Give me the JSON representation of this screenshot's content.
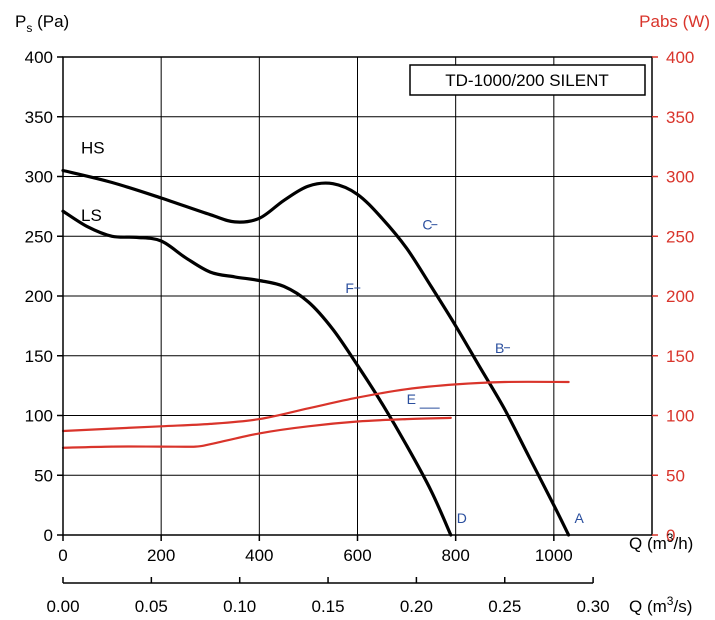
{
  "chart_data": {
    "type": "line",
    "title": "TD-1000/200 SILENT",
    "ylabel_left": {
      "main": "P",
      "sub": "s",
      "rest": " (Pa)"
    },
    "ylabel_right": "Pabs (W)",
    "xlabel_top": {
      "pre": "Q (m",
      "sup": "3",
      "post": "/h)"
    },
    "xlabel_bottom": {
      "pre": "Q (m",
      "sup": "3",
      "post": "/s)"
    },
    "xlim": [
      0,
      1200
    ],
    "ylim": [
      0,
      400
    ],
    "y2lim": [
      0,
      400
    ],
    "x_ticks": [
      0,
      200,
      400,
      600,
      800,
      1000
    ],
    "x_tick_labels": [
      "0",
      "200",
      "400",
      "600",
      "800",
      "1000"
    ],
    "x2_ticks": [
      0.0,
      0.05,
      0.1,
      0.15,
      0.2,
      0.25,
      0.3
    ],
    "x2_tick_labels": [
      "0.00",
      "0.05",
      "0.10",
      "0.15",
      "0.20",
      "0.25",
      "0.30"
    ],
    "y_ticks": [
      0,
      50,
      100,
      150,
      200,
      250,
      300,
      350,
      400
    ],
    "y_tick_labels": [
      "0",
      "50",
      "100",
      "150",
      "200",
      "250",
      "300",
      "350",
      "400"
    ],
    "y2_tick_labels": [
      "0",
      "50",
      "100",
      "150",
      "200",
      "250",
      "300",
      "350",
      "400"
    ],
    "grid": true,
    "series": [
      {
        "name": "HS",
        "axis": "left",
        "color": "#000000",
        "points": [
          [
            0,
            305
          ],
          [
            100,
            295
          ],
          [
            200,
            282
          ],
          [
            300,
            268
          ],
          [
            350,
            262
          ],
          [
            400,
            265
          ],
          [
            450,
            280
          ],
          [
            500,
            292
          ],
          [
            550,
            294
          ],
          [
            600,
            285
          ],
          [
            650,
            265
          ],
          [
            700,
            240
          ],
          [
            750,
            208
          ],
          [
            800,
            175
          ],
          [
            850,
            140
          ],
          [
            900,
            105
          ],
          [
            950,
            65
          ],
          [
            1000,
            25
          ],
          [
            1030,
            0
          ]
        ]
      },
      {
        "name": "LS",
        "axis": "left",
        "color": "#000000",
        "points": [
          [
            0,
            271
          ],
          [
            50,
            258
          ],
          [
            100,
            250
          ],
          [
            150,
            249
          ],
          [
            200,
            246
          ],
          [
            250,
            232
          ],
          [
            300,
            220
          ],
          [
            350,
            216
          ],
          [
            400,
            213
          ],
          [
            450,
            208
          ],
          [
            500,
            195
          ],
          [
            550,
            172
          ],
          [
            600,
            142
          ],
          [
            650,
            110
          ],
          [
            700,
            75
          ],
          [
            750,
            37
          ],
          [
            790,
            0
          ]
        ]
      },
      {
        "name": "",
        "axis": "right",
        "color": "#d9342b",
        "points": [
          [
            0,
            87
          ],
          [
            100,
            89
          ],
          [
            200,
            91
          ],
          [
            300,
            93
          ],
          [
            400,
            97
          ],
          [
            500,
            106
          ],
          [
            600,
            115
          ],
          [
            700,
            122
          ],
          [
            800,
            126
          ],
          [
            900,
            128
          ],
          [
            1030,
            128
          ]
        ]
      },
      {
        "name": "",
        "axis": "right",
        "color": "#d9342b",
        "points": [
          [
            0,
            73
          ],
          [
            100,
            74
          ],
          [
            200,
            74
          ],
          [
            270,
            74
          ],
          [
            300,
            76
          ],
          [
            400,
            85
          ],
          [
            500,
            91
          ],
          [
            600,
            95
          ],
          [
            700,
            97
          ],
          [
            790,
            98
          ]
        ]
      }
    ],
    "annotations": [
      {
        "label": "A",
        "x": 1030,
        "y": 0
      },
      {
        "label": "B",
        "x": 870,
        "y": 150
      },
      {
        "label": "C",
        "x": 722,
        "y": 253
      },
      {
        "label": "D",
        "x": 790,
        "y": 0
      },
      {
        "label": "E",
        "x": 690,
        "y": 107
      },
      {
        "label": "F",
        "x": 565,
        "y": 200
      }
    ]
  }
}
